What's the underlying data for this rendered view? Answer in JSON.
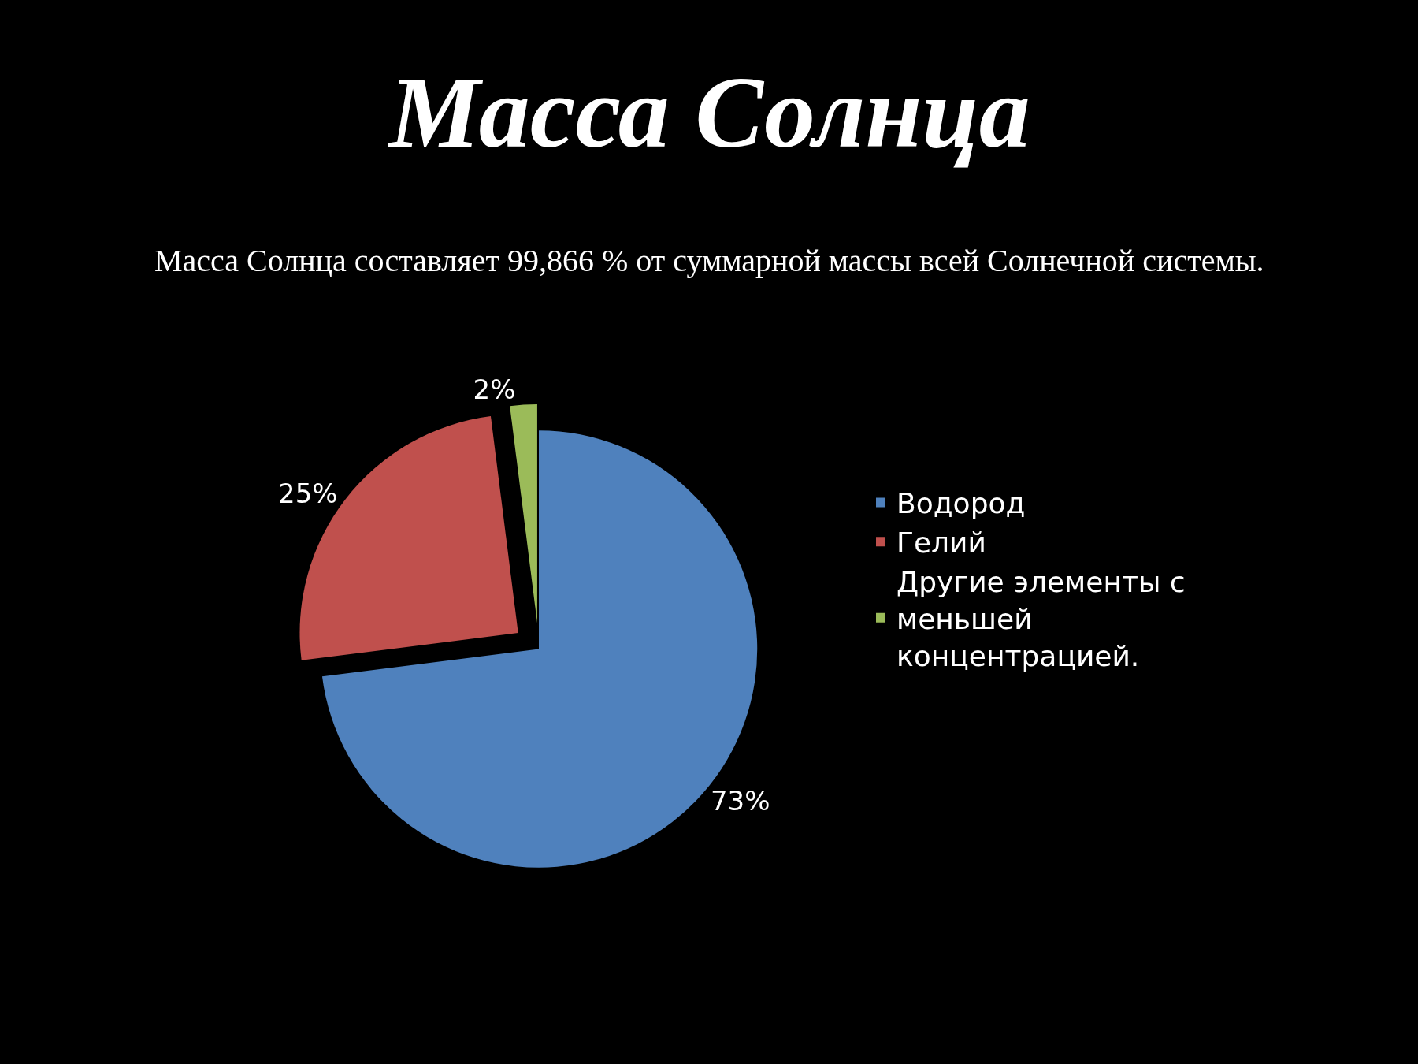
{
  "chart_data": {
    "type": "pie",
    "title": "Масса Солнца",
    "subtitle": "Масса Солнца составляет 99,866 % от суммарной массы всей Солнечной системы.",
    "categories": [
      "Водород",
      "Гелий",
      "Другие элементы с меньшей концентрацией."
    ],
    "values": [
      73,
      25,
      2
    ],
    "colors": [
      "#4f81bd",
      "#c0504d",
      "#9bbb59"
    ],
    "value_labels": [
      "73%",
      "25%",
      "2%"
    ],
    "legend": "right"
  }
}
